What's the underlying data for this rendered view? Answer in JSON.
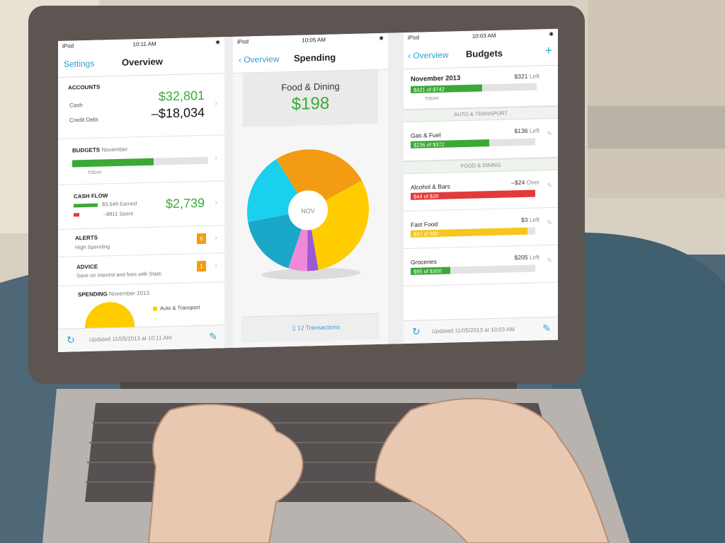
{
  "overview": {
    "status": {
      "carrier": "iPod",
      "time": "10:11 AM"
    },
    "nav": {
      "left": "Settings",
      "title": "Overview"
    },
    "accounts": {
      "heading": "ACCOUNTS",
      "cash_label": "Cash",
      "cash_value": "$32,801",
      "debt_label": "Credit Debt",
      "debt_value": "–$18,034"
    },
    "budgets": {
      "heading": "BUDGETS",
      "month": "November",
      "today": "TODAY",
      "progress": 0.6
    },
    "cashflow": {
      "heading": "CASH FLOW",
      "earned": "$3,549 Earned",
      "spent": "–$811 Spent",
      "value": "$2,739"
    },
    "alerts": {
      "heading": "ALERTS",
      "sub": "High Spending",
      "count": "6"
    },
    "advice": {
      "heading": "ADVICE",
      "sub": "Save on interest and fees with Slate.",
      "count": "1"
    },
    "spending": {
      "heading": "SPENDING",
      "month": "November 2013",
      "legend": "Auto & Transport"
    },
    "footer": {
      "updated": "Updated 11/05/2013 at 10:11 AM"
    }
  },
  "spending_panel": {
    "status": {
      "carrier": "iPod",
      "time": "10:05 AM"
    },
    "nav": {
      "back": "Overview",
      "title": "Spending"
    },
    "category": "Food & Dining",
    "amount": "$198",
    "center_label": "NOV",
    "transactions": "12 Transactions",
    "chart_colors": [
      "#f39c12",
      "#ffcc00",
      "#9b59d6",
      "#f08ad8",
      "#1ba7c7",
      "#19d0ef"
    ]
  },
  "budgets_panel": {
    "status": {
      "carrier": "iPod",
      "time": "10:03 AM"
    },
    "nav": {
      "back": "Overview",
      "title": "Budgets",
      "add": "+"
    },
    "month": {
      "name": "November 2013",
      "left": "$321",
      "left_word": "Left",
      "bar": "$421 of $742",
      "fill": 0.57,
      "today": "TODAY"
    },
    "groups": [
      {
        "name": "AUTO & TRANSPORT",
        "items": [
          {
            "name": "Gas & Fuel",
            "amount": "$136",
            "word": "Left",
            "bar": "$236 of $372",
            "fill": 0.63,
            "color": "#3aa935"
          }
        ]
      },
      {
        "name": "FOOD & DINING",
        "items": [
          {
            "name": "Alcohol & Bars",
            "amount": "–$24",
            "word": "Over",
            "bar": "$44 of $20",
            "fill": 1.0,
            "color": "#e23b3b"
          },
          {
            "name": "Fast Food",
            "amount": "$3",
            "word": "Left",
            "bar": "$47 of $50",
            "fill": 0.94,
            "color": "#f7c51b"
          },
          {
            "name": "Groceries",
            "amount": "$205",
            "word": "Left",
            "bar": "$95 of $300",
            "fill": 0.32,
            "color": "#3aa935"
          }
        ]
      }
    ],
    "footer": {
      "updated": "Updated 11/05/2013 at 10:03 AM"
    }
  }
}
